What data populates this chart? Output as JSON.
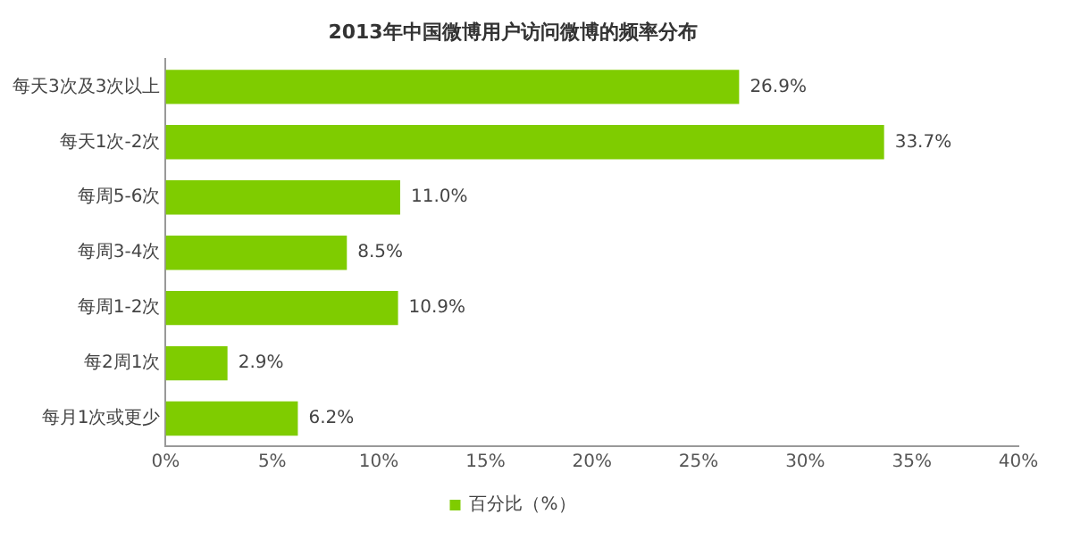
{
  "chart_data": {
    "type": "bar",
    "orientation": "horizontal",
    "title": "2013年中国微博用户访问微博的频率分布",
    "categories": [
      "每天3次及3次以上",
      "每天1次-2次",
      "每周5-6次",
      "每周3-4次",
      "每周1-2次",
      "每2周1次",
      "每月1次或更少"
    ],
    "series": [
      {
        "name": "百分比（%）",
        "color": "#7fcc00",
        "values": [
          26.9,
          33.7,
          11.0,
          8.5,
          10.9,
          2.9,
          6.2
        ],
        "value_labels": [
          "26.9%",
          "33.7%",
          "11.0%",
          "8.5%",
          "10.9%",
          "2.9%",
          "6.2%"
        ]
      }
    ],
    "xlim": [
      0,
      40
    ],
    "xticks": [
      {
        "value": 0,
        "label": "0%"
      },
      {
        "value": 5,
        "label": "5%"
      },
      {
        "value": 10,
        "label": "10%"
      },
      {
        "value": 15,
        "label": "15%"
      },
      {
        "value": 20,
        "label": "20%"
      },
      {
        "value": 25,
        "label": "25%"
      },
      {
        "value": 30,
        "label": "30%"
      },
      {
        "value": 35,
        "label": "35%"
      },
      {
        "value": 40,
        "label": "40%"
      }
    ],
    "grid": false,
    "legend": "bottom"
  }
}
